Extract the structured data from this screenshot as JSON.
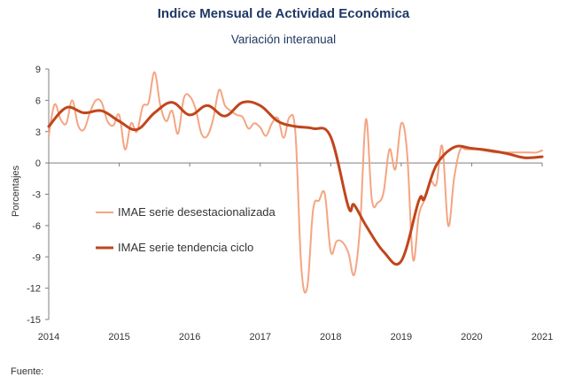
{
  "header": {
    "title": "Indice Mensual de  Actividad Económica",
    "subtitle": "Variación interanual"
  },
  "footer": {
    "source": "Fuente:"
  },
  "colors": {
    "series_desestacionalizada": "#f4a582",
    "series_tendencia": "#c0461c",
    "axis": "#7f7f7f",
    "title": "#1f3864"
  },
  "chart_data": {
    "type": "line",
    "title": "Indice Mensual de  Actividad Económica",
    "subtitle": "Variación interanual",
    "xlabel": "",
    "ylabel": "Porcentajes",
    "ylim": [
      -15,
      9
    ],
    "xlim": [
      2014,
      2021
    ],
    "y_ticks": [
      "9",
      "6",
      "3",
      "0",
      "-3",
      "-6",
      "-9",
      "-12",
      "-15"
    ],
    "x_ticks": [
      "2014",
      "2015",
      "2016",
      "2017",
      "2018",
      "2019",
      "2020",
      "2021"
    ],
    "grid": false,
    "legend_position": "left-middle",
    "series": [
      {
        "name": "IMAE serie desestacionalizada",
        "style": "thin-light",
        "x": [
          2014.0,
          2014.083,
          2014.167,
          2014.25,
          2014.333,
          2014.417,
          2014.5,
          2014.583,
          2014.667,
          2014.75,
          2014.833,
          2014.917,
          2015.0,
          2015.083,
          2015.167,
          2015.25,
          2015.333,
          2015.417,
          2015.5,
          2015.583,
          2015.667,
          2015.75,
          2015.833,
          2015.917,
          2016.0,
          2016.083,
          2016.167,
          2016.25,
          2016.333,
          2016.417,
          2016.5,
          2016.583,
          2016.667,
          2016.75,
          2016.833,
          2016.917,
          2017.0,
          2017.083,
          2017.167,
          2017.25,
          2017.333,
          2017.417,
          2017.5,
          2017.583,
          2017.667,
          2017.75,
          2017.833,
          2017.917,
          2018.0,
          2018.083,
          2018.167,
          2018.25,
          2018.333,
          2018.417,
          2018.5,
          2018.583,
          2018.667,
          2018.75,
          2018.833,
          2018.917,
          2019.0,
          2019.083,
          2019.167,
          2019.25,
          2019.333,
          2019.417,
          2019.5,
          2019.583,
          2019.667,
          2019.75,
          2019.833,
          2019.917,
          2020.0,
          2020.083,
          2020.167,
          2020.25,
          2020.333,
          2020.417,
          2020.5,
          2020.583,
          2020.667,
          2020.75,
          2020.833,
          2020.917,
          2021.0
        ],
        "y": [
          2.6,
          5.6,
          4.2,
          3.8,
          6.0,
          3.6,
          3.2,
          4.8,
          6.0,
          5.8,
          4.0,
          3.6,
          4.6,
          1.3,
          3.8,
          3.0,
          5.4,
          5.8,
          8.7,
          5.5,
          4.0,
          5.0,
          2.8,
          6.2,
          6.4,
          5.2,
          2.8,
          2.6,
          4.2,
          7.0,
          5.5,
          5.0,
          4.6,
          4.4,
          3.3,
          3.8,
          3.4,
          2.6,
          3.8,
          4.3,
          2.4,
          4.4,
          2.8,
          -10.0,
          -11.9,
          -4.5,
          -3.6,
          -3.0,
          -8.5,
          -7.5,
          -7.6,
          -8.6,
          -10.7,
          -6.0,
          4.2,
          -3.5,
          -3.8,
          -2.8,
          1.3,
          -0.6,
          3.8,
          1.0,
          -9.2,
          -5.0,
          -3.5,
          -1.8,
          -2.0,
          1.6,
          -6.0,
          -1.5,
          1.2,
          1.3,
          1.3,
          1.3,
          1.2,
          1.1,
          1.0,
          1.0,
          1.0,
          1.0,
          1.0,
          1.0,
          1.0,
          1.0,
          1.2
        ]
      },
      {
        "name": "IMAE serie  tendencia ciclo",
        "style": "thick-dark",
        "x": [
          2014.0,
          2014.25,
          2014.5,
          2014.75,
          2015.0,
          2015.25,
          2015.5,
          2015.75,
          2016.0,
          2016.25,
          2016.5,
          2016.75,
          2017.0,
          2017.25,
          2017.5,
          2017.75,
          2018.0,
          2018.25,
          2018.33,
          2018.5,
          2018.75,
          2019.0,
          2019.25,
          2019.33,
          2019.5,
          2019.75,
          2020.0,
          2020.25,
          2020.5,
          2020.75,
          2021.0
        ],
        "y": [
          3.5,
          5.3,
          4.8,
          5.0,
          4.0,
          3.2,
          4.8,
          5.8,
          4.6,
          5.5,
          4.5,
          5.8,
          5.5,
          4.0,
          3.5,
          3.3,
          2.5,
          -4.2,
          -4.0,
          -6.0,
          -8.5,
          -9.4,
          -3.6,
          -3.4,
          -0.2,
          1.5,
          1.4,
          1.2,
          0.9,
          0.5,
          0.6
        ]
      }
    ]
  }
}
